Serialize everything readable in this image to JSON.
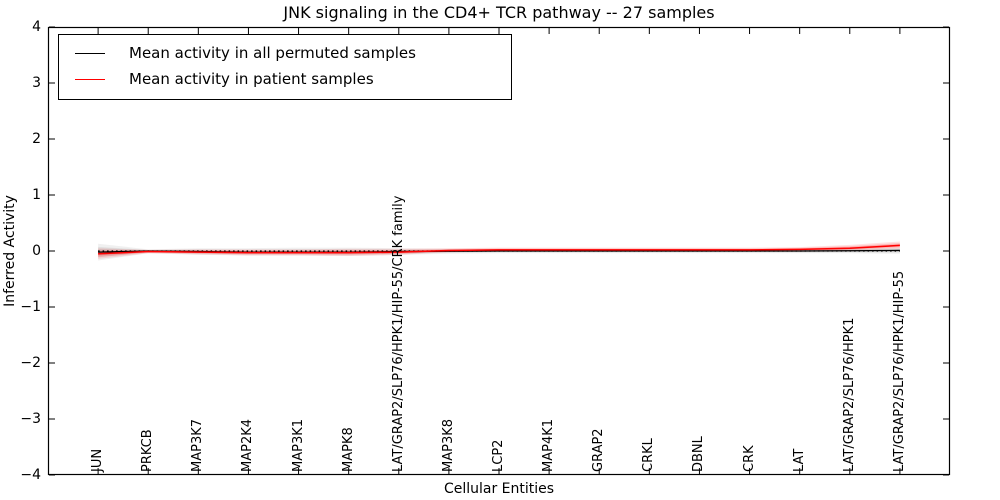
{
  "title": "JNK signaling in the CD4+ TCR pathway -- 27 samples",
  "xlabel": "Cellular Entities",
  "ylabel": "Inferred Activity",
  "legend": {
    "items": [
      {
        "label": "Mean activity in all permuted samples",
        "color": "#000000"
      },
      {
        "label": "Mean activity in patient samples",
        "color": "#ff0000"
      }
    ]
  },
  "chart_data": {
    "type": "line",
    "title": "JNK signaling in the CD4+ TCR pathway -- 27 samples",
    "xlabel": "Cellular Entities",
    "ylabel": "Inferred Activity",
    "ylim": [
      -4,
      4
    ],
    "yticks": [
      {
        "value": -4,
        "label": "−4"
      },
      {
        "value": -3,
        "label": "−3"
      },
      {
        "value": -2,
        "label": "−2"
      },
      {
        "value": -1,
        "label": "−1"
      },
      {
        "value": 0,
        "label": "0"
      },
      {
        "value": 1,
        "label": "1"
      },
      {
        "value": 2,
        "label": "2"
      },
      {
        "value": 3,
        "label": "3"
      },
      {
        "value": 4,
        "label": "4"
      }
    ],
    "categories": [
      "JUN",
      "PRKCB",
      "MAP3K7",
      "MAP2K4",
      "MAP3K1",
      "MAPK8",
      "LAT/GRAP2/SLP76/HPK1/HIP-55/CRK family",
      "MAP3K8",
      "LCP2",
      "MAP4K1",
      "GRAP2",
      "CRKL",
      "DBNL",
      "CRK",
      "LAT",
      "LAT/GRAP2/SLP76/HPK1",
      "LAT/GRAP2/SLP76/HPK1/HIP-55"
    ],
    "zero_line": true,
    "legend_position": "upper left",
    "grid": false,
    "series": [
      {
        "name": "Mean activity in all permuted samples",
        "color": "#000000",
        "line_width": 1.3,
        "band_color": "#888888",
        "values": [
          -0.02,
          0.0,
          -0.01,
          -0.02,
          -0.02,
          -0.02,
          -0.01,
          -0.005,
          0.0,
          0.0,
          0.0,
          0.0,
          0.0,
          0.0,
          0.0,
          0.005,
          0.01
        ],
        "band_upper": [
          0.13,
          0.03,
          0.05,
          0.05,
          0.06,
          0.06,
          0.05,
          0.04,
          0.04,
          0.04,
          0.04,
          0.04,
          0.04,
          0.04,
          0.04,
          0.05,
          0.06
        ],
        "band_lower": [
          -0.17,
          -0.04,
          -0.07,
          -0.08,
          -0.08,
          -0.09,
          -0.07,
          -0.05,
          -0.04,
          -0.04,
          -0.04,
          -0.04,
          -0.04,
          -0.04,
          -0.04,
          -0.04,
          -0.05
        ]
      },
      {
        "name": "Mean activity in patient samples",
        "color": "#ff0000",
        "line_width": 1.5,
        "band_color": "#ff1a1a",
        "values": [
          -0.05,
          -0.01,
          -0.02,
          -0.03,
          -0.03,
          -0.03,
          -0.02,
          0.01,
          0.02,
          0.02,
          0.02,
          0.02,
          0.02,
          0.02,
          0.03,
          0.05,
          0.1
        ],
        "band_upper": [
          0.05,
          0.02,
          0.03,
          0.03,
          0.03,
          0.04,
          0.04,
          0.05,
          0.06,
          0.06,
          0.06,
          0.06,
          0.06,
          0.06,
          0.07,
          0.11,
          0.17
        ],
        "band_lower": [
          -0.14,
          -0.04,
          -0.06,
          -0.08,
          -0.08,
          -0.09,
          -0.07,
          -0.02,
          -0.01,
          -0.01,
          -0.01,
          -0.01,
          -0.01,
          -0.01,
          0.0,
          0.01,
          0.04
        ]
      }
    ]
  }
}
